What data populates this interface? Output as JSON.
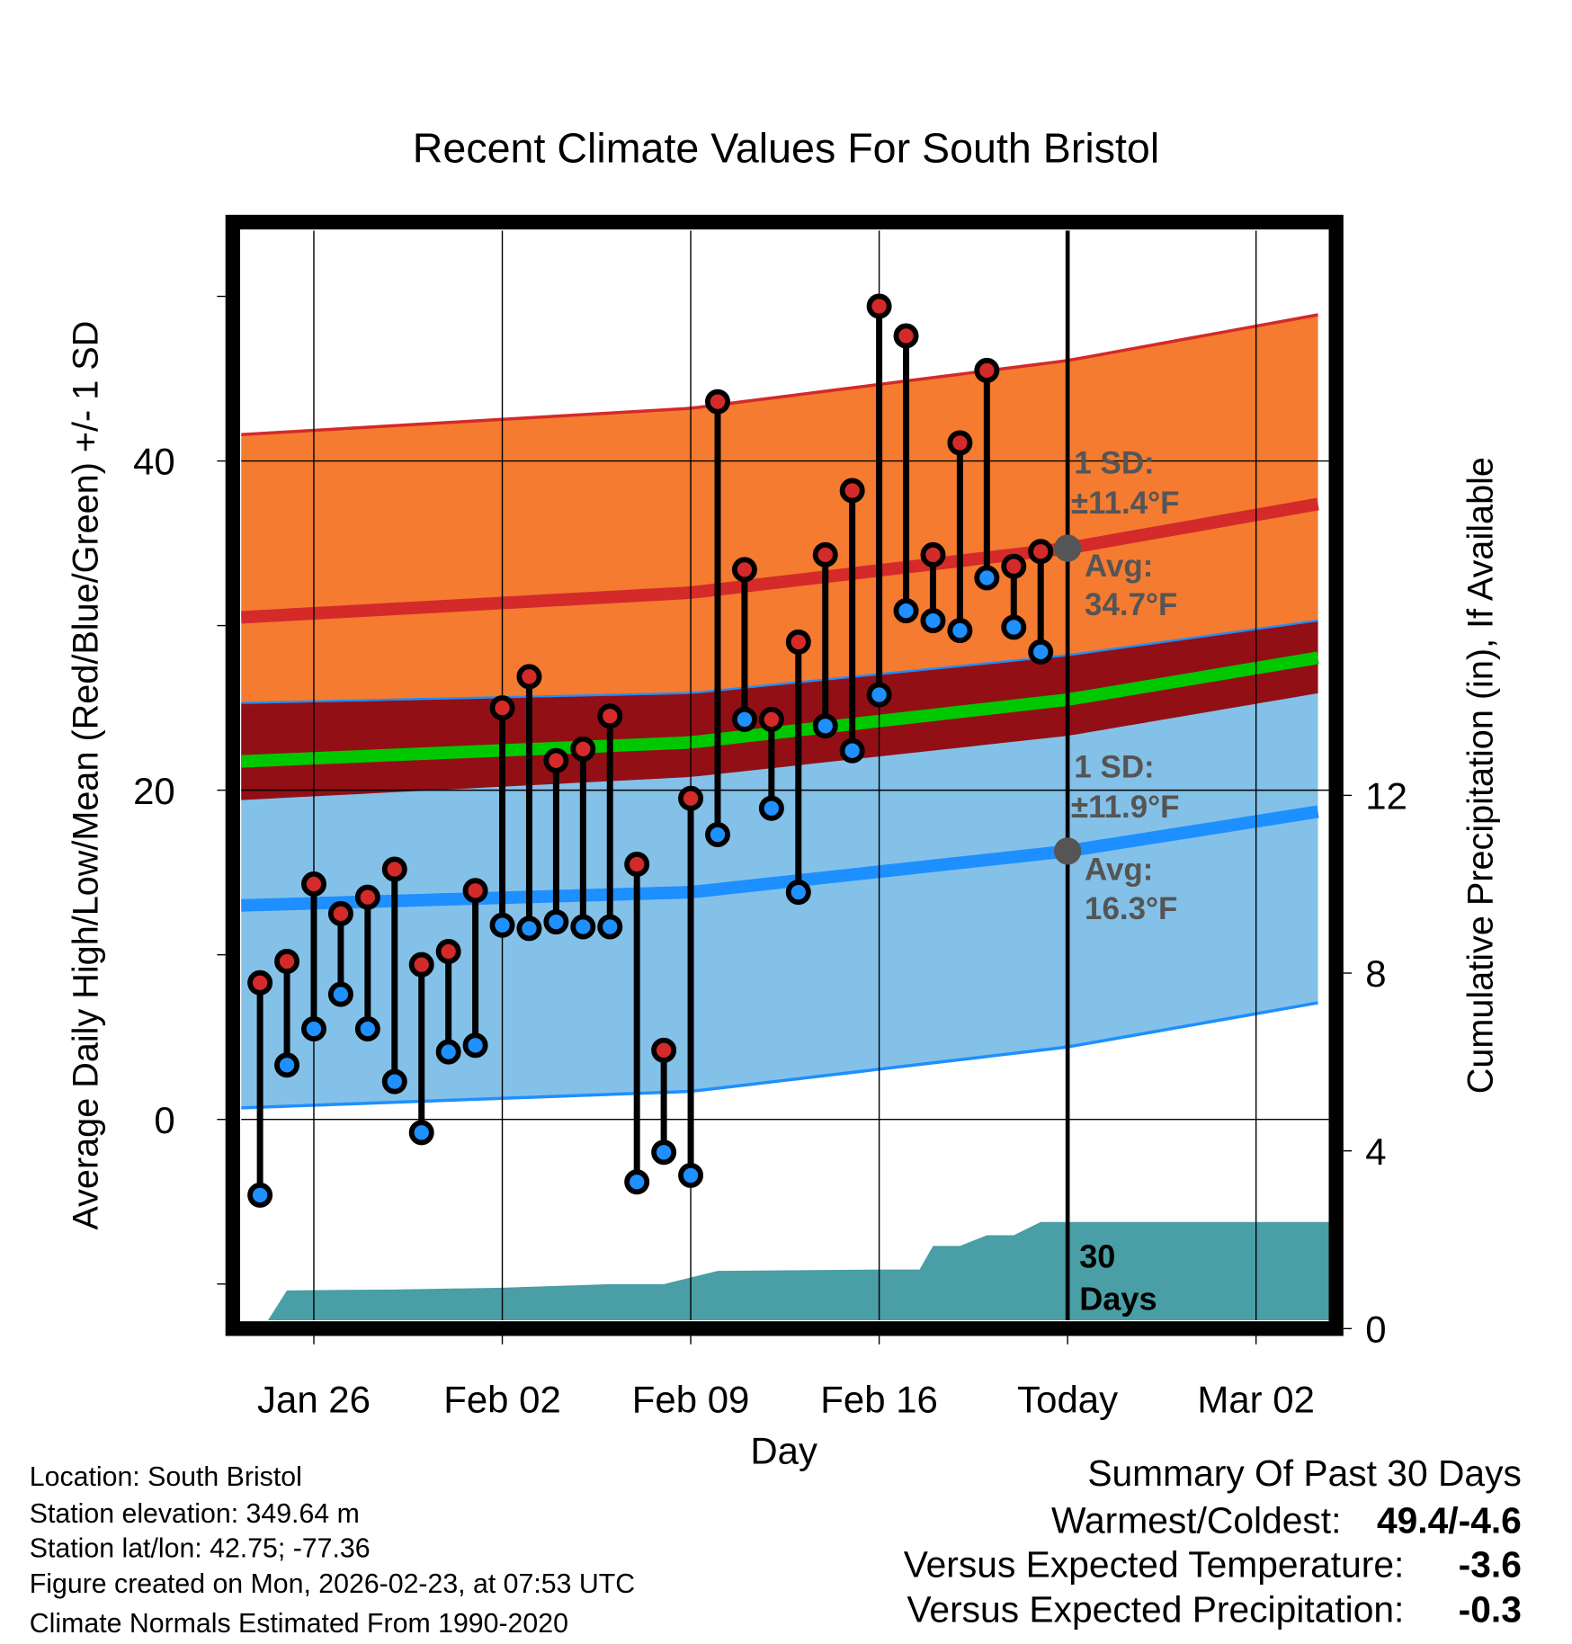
{
  "chart_data": {
    "type": "line",
    "title": "Recent Climate Values For South Bristol",
    "xlabel": "Day",
    "ylabel": "Average Daily High/Low/Mean (Red/Blue/Green) +/- 1 SD",
    "ylabel_right": "Cumulative Precipitation (in), If Available",
    "ylim": [
      -12.2,
      54
    ],
    "ylim_right": [
      0,
      24.9
    ],
    "x_units": "days since Jan 26",
    "xlim": [
      -2.7,
      37.7
    ],
    "x_ticks": [
      {
        "day": 0,
        "label": "Jan 26"
      },
      {
        "day": 7,
        "label": "Feb 02"
      },
      {
        "day": 14,
        "label": "Feb 09"
      },
      {
        "day": 21,
        "label": "Feb 16"
      },
      {
        "day": 28,
        "label": "Today"
      },
      {
        "day": 35,
        "label": "Mar 02"
      }
    ],
    "y_ticks": [
      {
        "value": 0,
        "label": "0"
      },
      {
        "value": 20,
        "label": "20"
      },
      {
        "value": 40,
        "label": "40"
      }
    ],
    "y_minor_ticks": [
      -10,
      10,
      30,
      50
    ],
    "y_right_ticks": [
      {
        "value": 0,
        "label": "0"
      },
      {
        "value": 4,
        "label": "4"
      },
      {
        "value": 8,
        "label": "8"
      },
      {
        "value": 12,
        "label": "12"
      }
    ],
    "grid": true,
    "today_day": 28,
    "observations": {
      "days": [
        -2,
        -1,
        0,
        1,
        2,
        3,
        4,
        5,
        6,
        7,
        8,
        9,
        10,
        11,
        12,
        13,
        14,
        15,
        16,
        17,
        18,
        19,
        20,
        21,
        22,
        23,
        24,
        25,
        26,
        27
      ],
      "high": [
        8.3,
        9.6,
        14.3,
        12.5,
        13.5,
        15.2,
        9.4,
        10.2,
        13.9,
        25.0,
        26.9,
        21.8,
        22.5,
        24.5,
        15.5,
        4.2,
        19.5,
        43.6,
        33.4,
        24.3,
        29.0,
        34.3,
        38.2,
        49.4,
        47.6,
        34.3,
        41.1,
        45.5,
        33.6,
        34.5
      ],
      "low": [
        -4.6,
        3.3,
        5.5,
        7.6,
        5.5,
        2.3,
        -0.8,
        4.1,
        4.5,
        11.8,
        11.6,
        12.0,
        11.7,
        11.7,
        -3.8,
        -2.0,
        -3.4,
        17.3,
        24.3,
        18.9,
        13.8,
        23.9,
        22.4,
        25.8,
        30.9,
        30.3,
        29.7,
        32.9,
        29.9,
        28.4
      ]
    },
    "normals": {
      "days": [
        -2.7,
        14,
        28,
        37.7
      ],
      "high_mean": [
        30.5,
        32.0,
        34.7,
        37.5
      ],
      "high_sd": [
        11.1,
        11.2,
        11.4,
        11.5
      ],
      "low_mean": [
        13.0,
        13.8,
        16.3,
        18.8
      ],
      "low_sd": [
        12.3,
        12.1,
        11.9,
        11.6
      ]
    },
    "precipitation": {
      "days": [
        -2.7,
        -1.9,
        -1.0,
        3,
        7,
        10,
        11,
        13,
        15,
        21,
        22.5,
        23,
        24,
        25,
        26,
        27,
        37.7
      ],
      "cumulative": [
        0,
        0,
        0.86,
        0.88,
        0.92,
        0.98,
        1.0,
        1.0,
        1.3,
        1.33,
        1.33,
        1.86,
        1.86,
        2.1,
        2.1,
        2.4,
        2.4
      ]
    },
    "colors": {
      "high_band": "#f47b30",
      "low_band": "#84c1e8",
      "overlap": "#930f16",
      "mean_line": "#00c800",
      "high_line": "#d42a2a",
      "low_line": "#1e8fff",
      "precip": "#4a9ea5",
      "high_dot": "#d42a2a",
      "low_dot": "#1e90ff",
      "avg_dot": "#555555"
    },
    "annotations": {
      "high_sd_label": "1 SD:",
      "high_sd_value": "±11.4°F",
      "high_avg_label": "Avg:",
      "high_avg_value": "34.7°F",
      "low_sd_label": "1 SD:",
      "low_sd_value": "±11.9°F",
      "low_avg_label": "Avg:",
      "low_avg_value": "16.3°F",
      "days_count": "30",
      "days_word": "Days"
    }
  },
  "footer": {
    "location": "Location: South Bristol",
    "elevation": "Station elevation: 349.64 m",
    "latlon": "Station lat/lon: 42.75; -77.36",
    "created": "Figure created on Mon, 2026-02-23, at 07:53 UTC",
    "normals": "Climate Normals Estimated From 1990-2020"
  },
  "summary": {
    "title": "Summary Of Past 30 Days",
    "warm_cold_label": "Warmest/Coldest:",
    "warm_cold_value": "49.4/-4.6",
    "temp_label": "Versus Expected Temperature:",
    "temp_value": "-3.6",
    "temp_color": "#1e90ff",
    "precip_label": "Versus Expected Precipitation:",
    "precip_value": "-0.3",
    "precip_color": "#a0522d"
  }
}
